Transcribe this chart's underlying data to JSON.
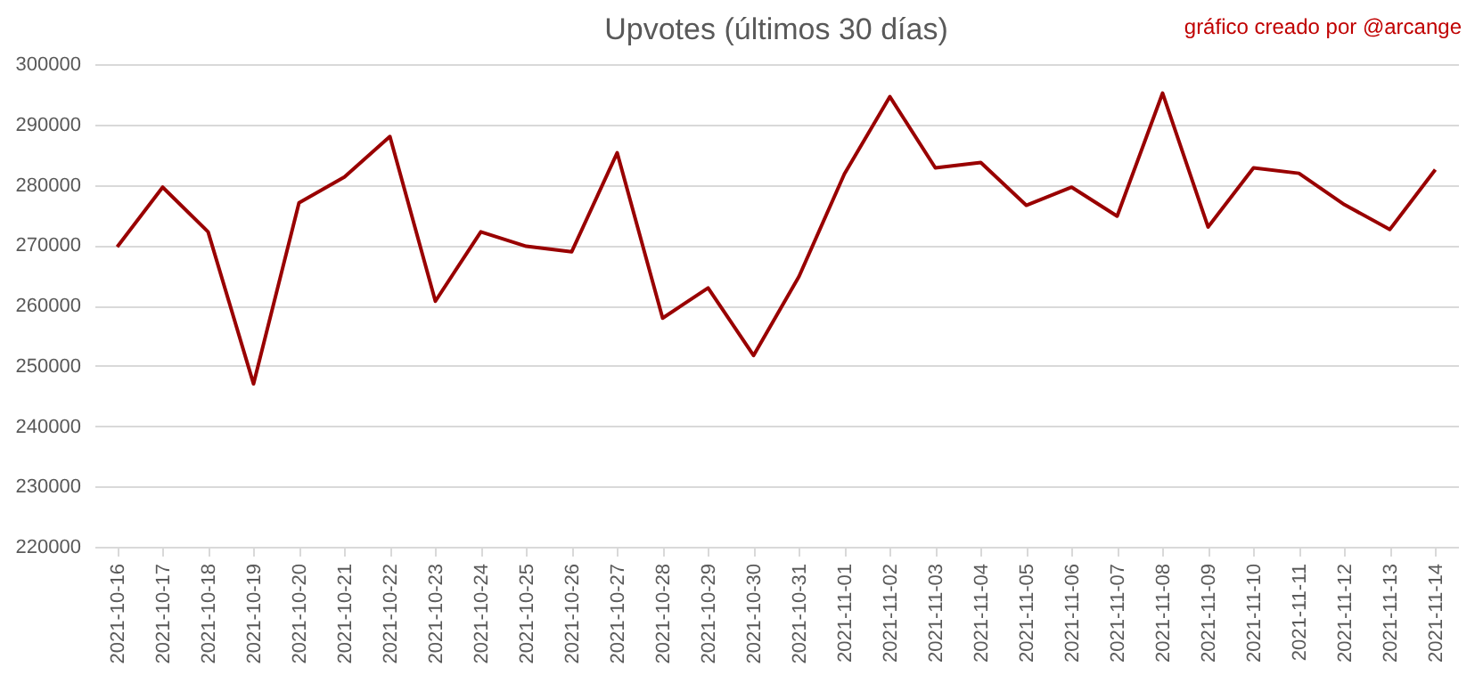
{
  "chart_data": {
    "type": "line",
    "title": "Upvotes (últimos 30 días)",
    "annotations": [
      "gráfico creado por @arcange"
    ],
    "categories": [
      "2021-10-16",
      "2021-10-17",
      "2021-10-18",
      "2021-10-19",
      "2021-10-20",
      "2021-10-21",
      "2021-10-22",
      "2021-10-23",
      "2021-10-24",
      "2021-10-25",
      "2021-10-26",
      "2021-10-27",
      "2021-10-28",
      "2021-10-29",
      "2021-10-30",
      "2021-10-31",
      "2021-11-01",
      "2021-11-02",
      "2021-11-03",
      "2021-11-04",
      "2021-11-05",
      "2021-11-06",
      "2021-11-07",
      "2021-11-08",
      "2021-11-09",
      "2021-11-10",
      "2021-11-11",
      "2021-11-12",
      "2021-11-13",
      "2021-11-14"
    ],
    "series": [
      {
        "color": "#990000",
        "values": [
          269700,
          279600,
          272200,
          247000,
          277000,
          281300,
          288000,
          260700,
          272200,
          269800,
          268900,
          285300,
          257900,
          262900,
          251700,
          264800,
          281800,
          294600,
          282800,
          283700,
          276600,
          279600,
          274800,
          295200,
          273000,
          282800,
          281900,
          276700,
          272600,
          282500
        ]
      }
    ],
    "ylim": [
      220000,
      300000
    ],
    "yticks": [
      220000,
      230000,
      240000,
      250000,
      260000,
      270000,
      280000,
      290000,
      300000
    ],
    "grid": "y",
    "legend": false,
    "marker": "none",
    "line_style": "solid"
  }
}
